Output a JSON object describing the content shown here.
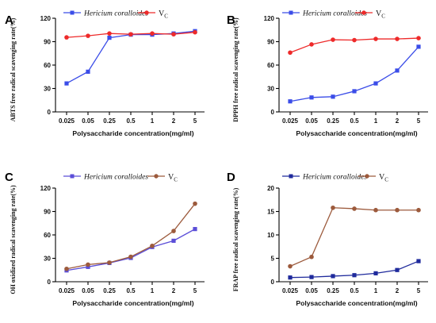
{
  "chart_data": [
    {
      "type": "line",
      "panel": "A",
      "ylabel": "ABTS free radical scavenging rate(%)",
      "xlabel": "Polysaccharide concentration(mg/ml)",
      "categories": [
        "0.025",
        "0.05",
        "0.25",
        "0.5",
        "1",
        "2",
        "5"
      ],
      "ylim": [
        0,
        120
      ],
      "yticks": [
        "0",
        "30",
        "60",
        "90",
        "120"
      ],
      "series": [
        {
          "name": "Hericium coralloides",
          "color": "#3b4de8",
          "marker": "square",
          "values": [
            36.5,
            51.5,
            95.0,
            99.0,
            99.0,
            100.5,
            103.5
          ]
        },
        {
          "name": "V",
          "name_sub": "C",
          "color": "#ee2a2a",
          "marker": "circle",
          "values": [
            95.5,
            97.5,
            100.5,
            99.5,
            100.5,
            99.5,
            102.0
          ]
        }
      ]
    },
    {
      "type": "line",
      "panel": "B",
      "ylabel": "DPPH free radical scavenging rate(%)",
      "xlabel": "Polysaccharide concentration(mg/ml)",
      "categories": [
        "0.025",
        "0.05",
        "0.25",
        "0.5",
        "1",
        "2",
        "5"
      ],
      "ylim": [
        0,
        120
      ],
      "yticks": [
        "0",
        "30",
        "60",
        "90",
        "120"
      ],
      "series": [
        {
          "name": "Hericium coralloides",
          "color": "#3b4de8",
          "marker": "square",
          "values": [
            13.5,
            18.5,
            19.5,
            26.5,
            36.5,
            53.0,
            83.5
          ]
        },
        {
          "name": "V",
          "name_sub": "C",
          "color": "#ee2a2a",
          "marker": "circle",
          "values": [
            76.0,
            86.5,
            92.5,
            92.0,
            93.5,
            93.5,
            94.5
          ]
        }
      ]
    },
    {
      "type": "line",
      "panel": "C",
      "ylabel": "OH oxidized radical scavenging rate(%)",
      "xlabel": "Polysaccharide concentration(mg/ml)",
      "categories": [
        "0.025",
        "0.05",
        "0.25",
        "0.5",
        "1",
        "2",
        "5"
      ],
      "ylim": [
        0,
        120
      ],
      "yticks": [
        "0",
        "30",
        "60",
        "90",
        "120"
      ],
      "series": [
        {
          "name": "Hericium coralloides",
          "color": "#5b4ed8",
          "marker": "square",
          "values": [
            14.5,
            19.0,
            24.0,
            30.5,
            44.5,
            52.5,
            67.5
          ]
        },
        {
          "name": "V",
          "name_sub": "C",
          "color": "#9c5a3c",
          "marker": "circle",
          "values": [
            16.5,
            22.0,
            24.5,
            32.0,
            46.0,
            65.0,
            100.0
          ]
        }
      ]
    },
    {
      "type": "line",
      "panel": "D",
      "ylabel": "FRAP free radical scavenging rate(%)",
      "xlabel": "Polysaccharide concentration(mg/ml)",
      "categories": [
        "0.025",
        "0.05",
        "0.25",
        "0.5",
        "1",
        "2",
        "5"
      ],
      "ylim": [
        0,
        20
      ],
      "yticks": [
        "0",
        "5",
        "10",
        "15",
        "20"
      ],
      "series": [
        {
          "name": "Hericium coralloides",
          "color": "#1f2a9c",
          "marker": "square",
          "values": [
            0.9,
            1.0,
            1.2,
            1.4,
            1.8,
            2.5,
            4.4
          ]
        },
        {
          "name": "V",
          "name_sub": "C",
          "color": "#9c5a3c",
          "marker": "circle",
          "values": [
            3.3,
            5.3,
            15.8,
            15.6,
            15.3,
            15.3,
            15.3
          ]
        }
      ]
    }
  ]
}
